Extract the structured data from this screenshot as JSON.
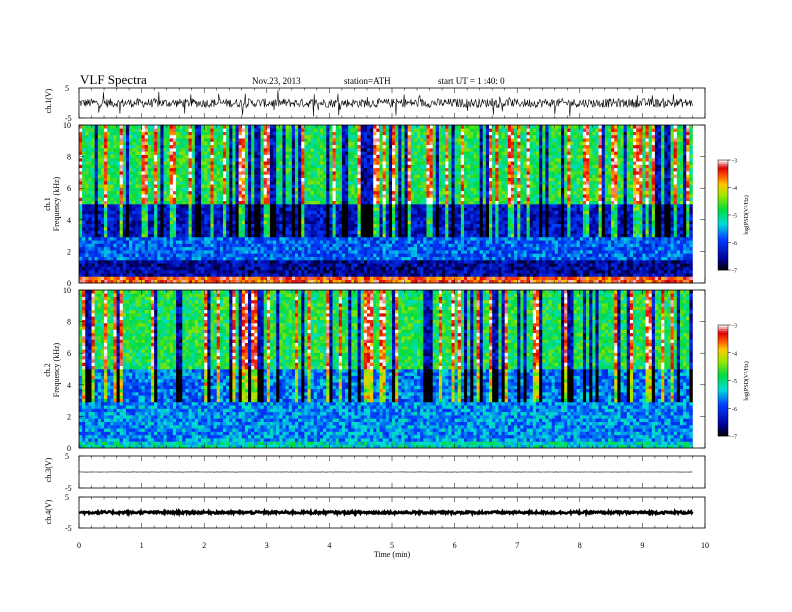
{
  "header": {
    "title": "VLF Spectra",
    "date": "Nov.23, 2013",
    "station": "station=ATH",
    "start": "start UT =  1 :40: 0"
  },
  "x_axis": {
    "label": "Time (min)",
    "ticks": [
      "0",
      "1",
      "2",
      "3",
      "4",
      "5",
      "6",
      "7",
      "8",
      "9",
      "10"
    ]
  },
  "panels": {
    "ch1_wave": {
      "ylabel": "ch.1(V)",
      "top_tick": "5",
      "bottom_tick": "-5"
    },
    "ch1_spec": {
      "ylabel_channel": "ch.1",
      "ylabel_freq": "Frequency (kHz)",
      "yticks": [
        "0",
        "2",
        "4",
        "6",
        "8",
        "10"
      ]
    },
    "ch2_spec": {
      "ylabel_channel": "ch.2",
      "ylabel_freq": "Frequency (kHz)",
      "yticks": [
        "0",
        "2",
        "4",
        "6",
        "8",
        "10"
      ]
    },
    "ch3_wave": {
      "ylabel": "ch.3(V)",
      "top_tick": "5",
      "bottom_tick": "-5"
    },
    "ch4_wave": {
      "ylabel": "ch.4(V)",
      "top_tick": "5",
      "bottom_tick": "-5"
    }
  },
  "colorbar": {
    "label": "log(PSD(V²/Hz)",
    "ticks": [
      "-3",
      "-4",
      "-5",
      "-6",
      "-7"
    ]
  },
  "chart_data": [
    {
      "type": "line",
      "channel": "ch.1",
      "xlabel": "Time (min)",
      "ylabel": "ch.1(V)",
      "xlim": [
        0,
        10
      ],
      "ylim": [
        -5,
        5
      ],
      "data_end_min": 9.8,
      "baseline_v": 0,
      "noise_amplitude_v": 1.5
    },
    {
      "type": "heatmap",
      "channel": "ch.1",
      "xlabel": "Time (min)",
      "ylabel": "Frequency (kHz)",
      "xlim": [
        0,
        10
      ],
      "ylim": [
        0,
        10
      ],
      "data_end_min": 9.8,
      "colorbar_range": [
        -7,
        -3
      ],
      "colorbar_label": "log(PSD(V²/Hz)",
      "typical_log_psd_by_band": [
        {
          "band_khz": [
            0,
            0.5
          ],
          "log_psd": -3.5
        },
        {
          "band_khz": [
            0.5,
            1.5
          ],
          "log_psd": -6.5
        },
        {
          "band_khz": [
            1.5,
            3
          ],
          "log_psd": -5.8
        },
        {
          "band_khz": [
            3,
            5
          ],
          "log_psd": -6.3
        },
        {
          "band_khz": [
            5,
            10
          ],
          "log_psd": -4.8
        }
      ]
    },
    {
      "type": "heatmap",
      "channel": "ch.2",
      "xlabel": "Time (min)",
      "ylabel": "Frequency (kHz)",
      "xlim": [
        0,
        10
      ],
      "ylim": [
        0,
        10
      ],
      "data_end_min": 9.8,
      "colorbar_range": [
        -7,
        -3
      ],
      "colorbar_label": "log(PSD(V²/Hz)",
      "typical_log_psd_by_band": [
        {
          "band_khz": [
            0,
            0.5
          ],
          "log_psd": -5.2
        },
        {
          "band_khz": [
            0.5,
            3
          ],
          "log_psd": -5.6
        },
        {
          "band_khz": [
            3,
            5
          ],
          "log_psd": -5.7
        },
        {
          "band_khz": [
            5,
            10
          ],
          "log_psd": -4.8
        }
      ]
    },
    {
      "type": "line",
      "channel": "ch.3",
      "xlabel": "Time (min)",
      "ylabel": "ch.3(V)",
      "xlim": [
        0,
        10
      ],
      "ylim": [
        -5,
        5
      ],
      "data_end_min": 9.8,
      "baseline_v": 0,
      "noise_amplitude_v": 0.05
    },
    {
      "type": "line",
      "channel": "ch.4",
      "xlabel": "Time (min)",
      "ylabel": "ch.4(V)",
      "xlim": [
        0,
        10
      ],
      "ylim": [
        -5,
        5
      ],
      "data_end_min": 9.8,
      "baseline_v": 0,
      "noise_amplitude_v": 0.4
    }
  ]
}
